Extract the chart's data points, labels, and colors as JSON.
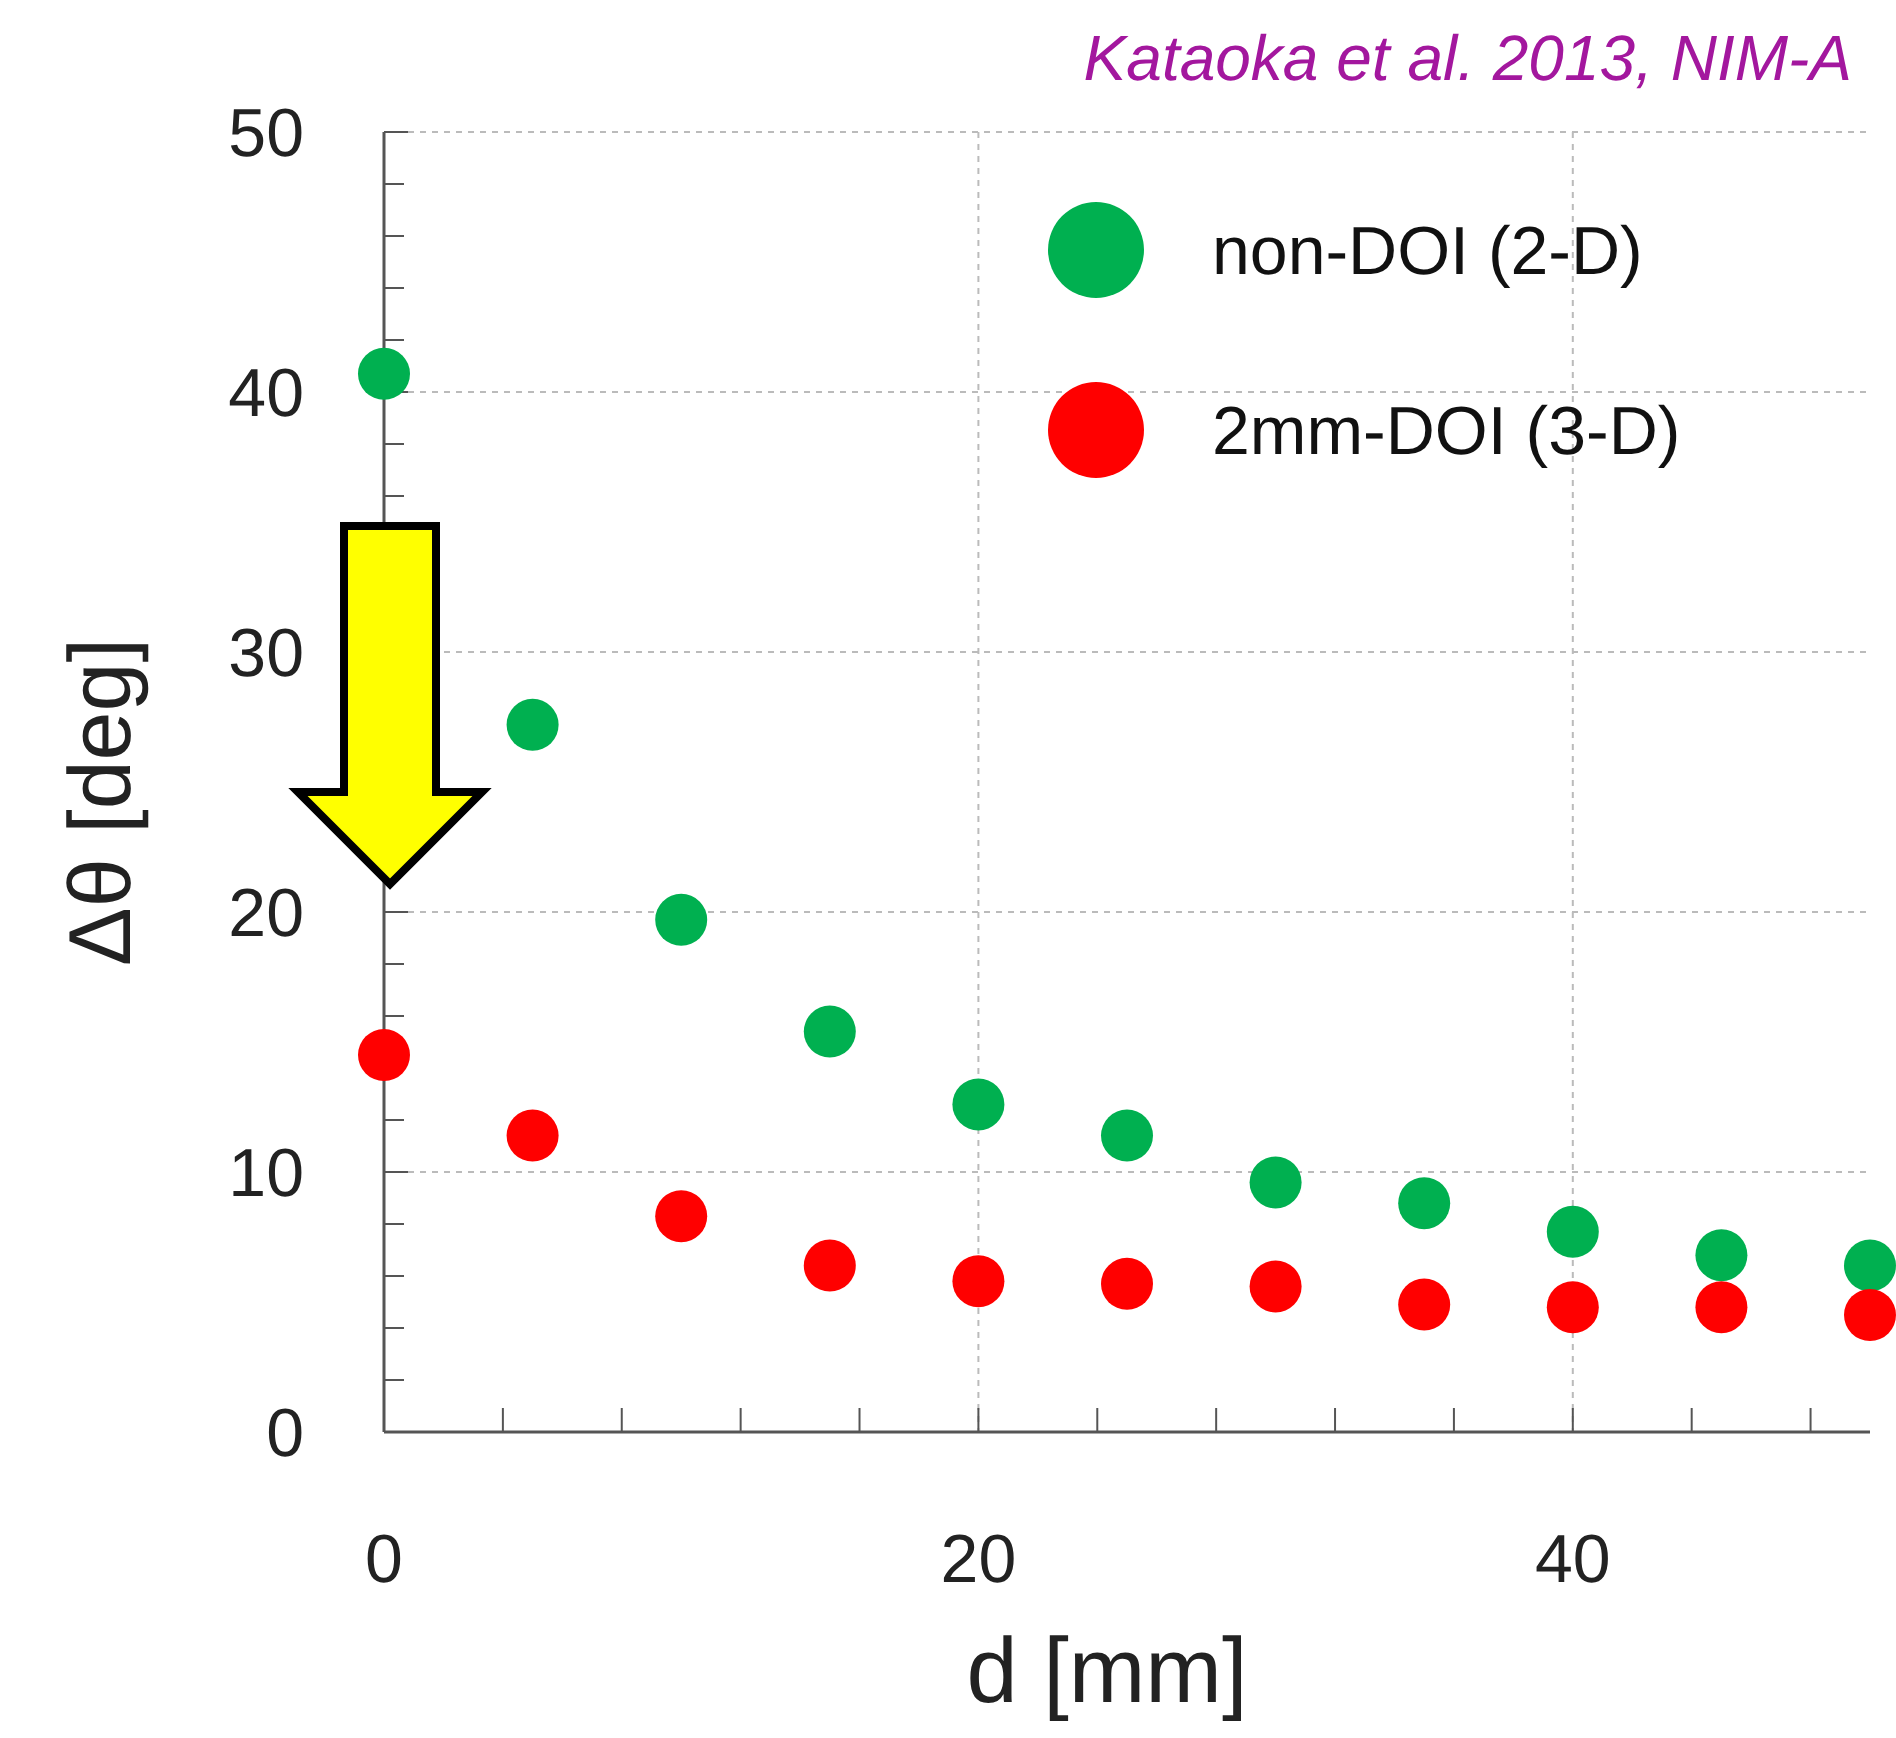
{
  "chart_data": {
    "type": "scatter",
    "xlabel": "d [mm]",
    "ylabel": "Δθ [deg]",
    "annotations": [
      "Kataoka et al. 2013, NIM-A"
    ],
    "xlim": [
      0,
      50
    ],
    "ylim": [
      0,
      50
    ],
    "xticks": [
      0,
      {
        "value": 4,
        "label": null
      },
      {
        "value": 8,
        "label": null
      },
      {
        "value": 12,
        "label": null
      },
      {
        "value": 16,
        "label": null
      },
      20,
      {
        "value": 24,
        "label": null
      },
      {
        "value": 28,
        "label": null
      },
      {
        "value": 32,
        "label": null
      },
      {
        "value": 36,
        "label": null
      },
      40,
      {
        "value": 44,
        "label": null
      },
      {
        "value": 48,
        "label": null
      }
    ],
    "yticks": [
      0,
      {
        "value": 2,
        "label": null
      },
      {
        "value": 4,
        "label": null
      },
      {
        "value": 6,
        "label": null
      },
      {
        "value": 8,
        "label": null
      },
      10,
      {
        "value": 12,
        "label": null
      },
      {
        "value": 14,
        "label": null
      },
      {
        "value": 16,
        "label": null
      },
      {
        "value": 18,
        "label": null
      },
      20,
      {
        "value": 22,
        "label": null
      },
      {
        "value": 24,
        "label": null
      },
      {
        "value": 26,
        "label": null
      },
      {
        "value": 28,
        "label": null
      },
      30,
      {
        "value": 32,
        "label": null
      },
      {
        "value": 34,
        "label": null
      },
      {
        "value": 36,
        "label": null
      },
      {
        "value": 38,
        "label": null
      },
      40,
      {
        "value": 42,
        "label": null
      },
      {
        "value": 44,
        "label": null
      },
      {
        "value": 46,
        "label": null
      },
      {
        "value": 48,
        "label": null
      },
      50
    ],
    "x": [
      0,
      5,
      10,
      15,
      20,
      25,
      30,
      35,
      40,
      45,
      50
    ],
    "series": [
      {
        "name": "non-DOI (2-D)",
        "color": "#00b050",
        "values": [
          40.7,
          27.2,
          19.7,
          15.4,
          12.6,
          11.4,
          9.6,
          8.8,
          7.7,
          6.8,
          6.4
        ]
      },
      {
        "name": "2mm-DOI (3-D)",
        "color": "#ff0000",
        "values": [
          14.5,
          11.4,
          8.3,
          6.4,
          5.8,
          5.7,
          5.6,
          4.9,
          4.8,
          4.8,
          4.5
        ]
      }
    ],
    "grid": true,
    "legend": "top right",
    "marker": "circle"
  }
}
